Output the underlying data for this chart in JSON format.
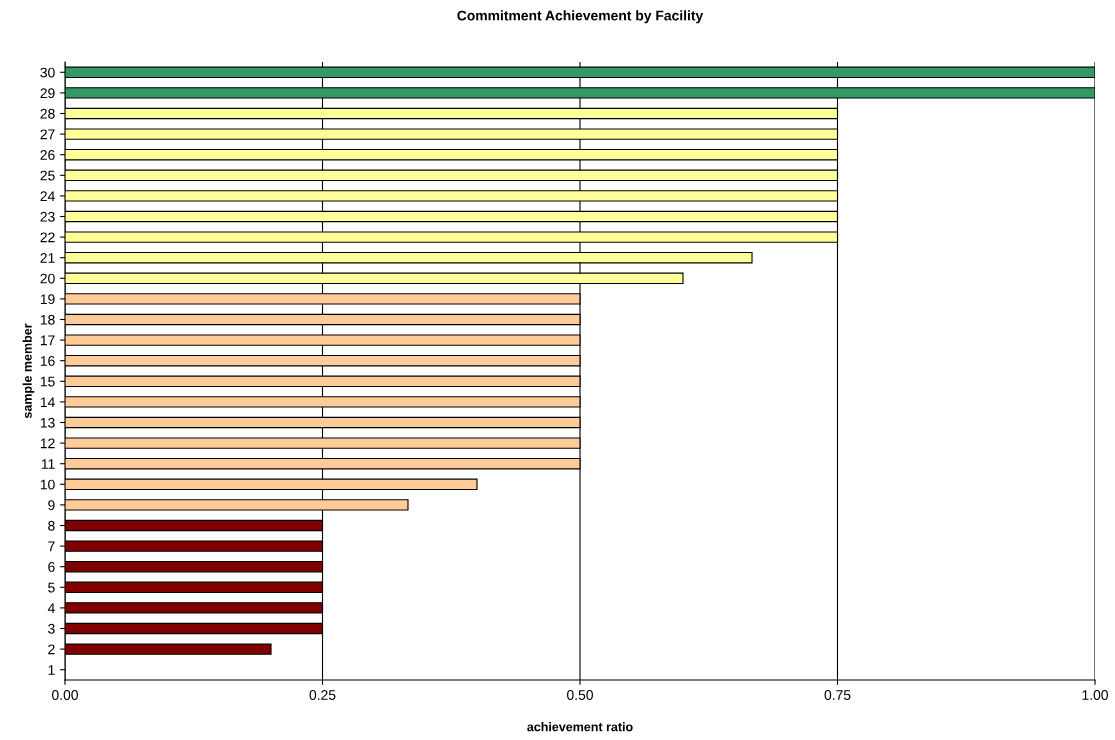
{
  "chart_data": {
    "type": "bar",
    "orientation": "horizontal",
    "title": "Commitment Achievement by Facility",
    "xlabel": "achievement ratio",
    "ylabel": "sample member",
    "categories": [
      "30",
      "29",
      "28",
      "27",
      "26",
      "25",
      "24",
      "23",
      "22",
      "21",
      "20",
      "19",
      "18",
      "17",
      "16",
      "15",
      "14",
      "13",
      "12",
      "11",
      "10",
      "9",
      "8",
      "7",
      "6",
      "5",
      "4",
      "3",
      "2",
      "1"
    ],
    "values": [
      1.0,
      1.0,
      0.75,
      0.75,
      0.75,
      0.75,
      0.75,
      0.75,
      0.75,
      0.667,
      0.6,
      0.5,
      0.5,
      0.5,
      0.5,
      0.5,
      0.5,
      0.5,
      0.5,
      0.5,
      0.4,
      0.333,
      0.25,
      0.25,
      0.25,
      0.25,
      0.25,
      0.25,
      0.2,
      0
    ],
    "colors": [
      "#339966",
      "#339966",
      "#ffff99",
      "#ffff99",
      "#ffff99",
      "#ffff99",
      "#ffff99",
      "#ffff99",
      "#ffff99",
      "#ffff99",
      "#ffff99",
      "#ffcc99",
      "#ffcc99",
      "#ffcc99",
      "#ffcc99",
      "#ffcc99",
      "#ffcc99",
      "#ffcc99",
      "#ffcc99",
      "#ffcc99",
      "#ffcc99",
      "#ffcc99",
      "#800000",
      "#800000",
      "#800000",
      "#800000",
      "#800000",
      "#800000",
      "#800000",
      "#800000"
    ],
    "xlim": [
      0,
      1
    ],
    "xticks": [
      {
        "value": 0,
        "label": "0.00"
      },
      {
        "value": 0.25,
        "label": "0.25"
      },
      {
        "value": 0.5,
        "label": "0.50"
      },
      {
        "value": 0.75,
        "label": "0.75"
      },
      {
        "value": 1,
        "label": "1.00"
      }
    ],
    "grid": "x"
  }
}
